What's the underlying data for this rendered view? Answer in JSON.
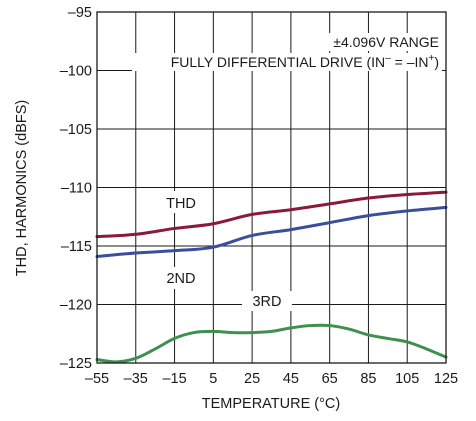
{
  "chart_data": {
    "type": "line",
    "xlabel": "TEMPERATURE (°C)",
    "ylabel": "THD, HARMONICS (dBFS)",
    "xlim": [
      -55,
      125
    ],
    "ylim": [
      -125,
      -95
    ],
    "xticks": [
      -55,
      -35,
      -15,
      5,
      25,
      45,
      65,
      85,
      105,
      125
    ],
    "yticks": [
      -95,
      -100,
      -105,
      -110,
      -115,
      -120,
      -125
    ],
    "xtick_labels": [
      "–55",
      "–35",
      "–15",
      "5",
      "25",
      "45",
      "65",
      "85",
      "105",
      "125"
    ],
    "ytick_labels": [
      "–95",
      "–100",
      "–105",
      "–110",
      "–115",
      "–120",
      "–125"
    ],
    "grid": true,
    "annotations": {
      "range": "±4.096V RANGE",
      "drive_prefix": "FULLY DIFFERENTIAL DRIVE (IN",
      "drive_sup1": "–",
      "drive_mid": " = –IN",
      "drive_sup2": "+",
      "drive_suffix": ")"
    },
    "series": [
      {
        "name": "THD",
        "color": "#8b1a3a",
        "x": [
          -55,
          -35,
          -15,
          5,
          25,
          45,
          65,
          85,
          105,
          125
        ],
        "y": [
          -114.2,
          -114.0,
          -113.5,
          -113.1,
          -112.3,
          -111.9,
          -111.4,
          -110.9,
          -110.6,
          -110.4
        ]
      },
      {
        "name": "2ND",
        "color": "#3a4f9c",
        "x": [
          -55,
          -35,
          -15,
          5,
          25,
          45,
          65,
          85,
          105,
          125
        ],
        "y": [
          -115.9,
          -115.6,
          -115.4,
          -115.1,
          -114.1,
          -113.6,
          -113.0,
          -112.4,
          -112.0,
          -111.7
        ]
      },
      {
        "name": "3RD",
        "color": "#3f8f4f",
        "x": [
          -55,
          -45,
          -35,
          -25,
          -15,
          -5,
          5,
          15,
          25,
          35,
          45,
          55,
          65,
          75,
          85,
          95,
          105,
          115,
          125
        ],
        "y": [
          -124.7,
          -124.9,
          -124.6,
          -123.8,
          -122.9,
          -122.4,
          -122.3,
          -122.4,
          -122.4,
          -122.3,
          -122.0,
          -121.8,
          -121.8,
          -122.1,
          -122.6,
          -122.9,
          -123.2,
          -123.8,
          -124.5
        ]
      }
    ]
  }
}
